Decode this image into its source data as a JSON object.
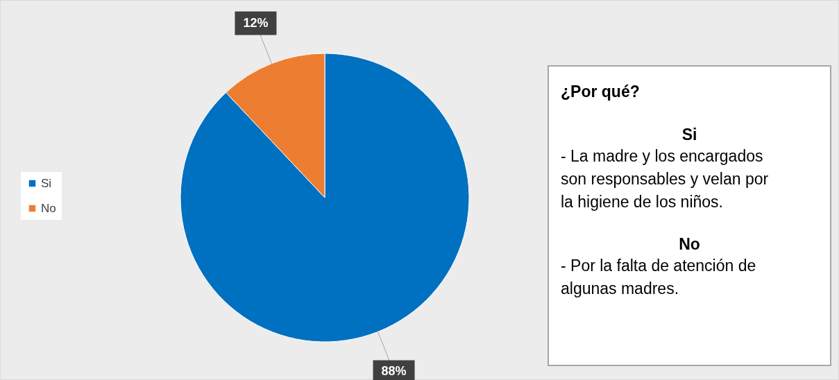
{
  "chart_data": {
    "type": "pie",
    "categories": [
      "Si",
      "No"
    ],
    "values": [
      88,
      12
    ],
    "colors": [
      "#0070c0",
      "#ed7d31"
    ],
    "value_labels": [
      "88%",
      "12%"
    ],
    "legend": "left",
    "annotations": [
      "¿Por qué?",
      "Si",
      "- La madre y los encargados son responsables y velan por la higiene de los niños.",
      "No",
      "- Por la falta de atención de algunas madres."
    ]
  }
}
